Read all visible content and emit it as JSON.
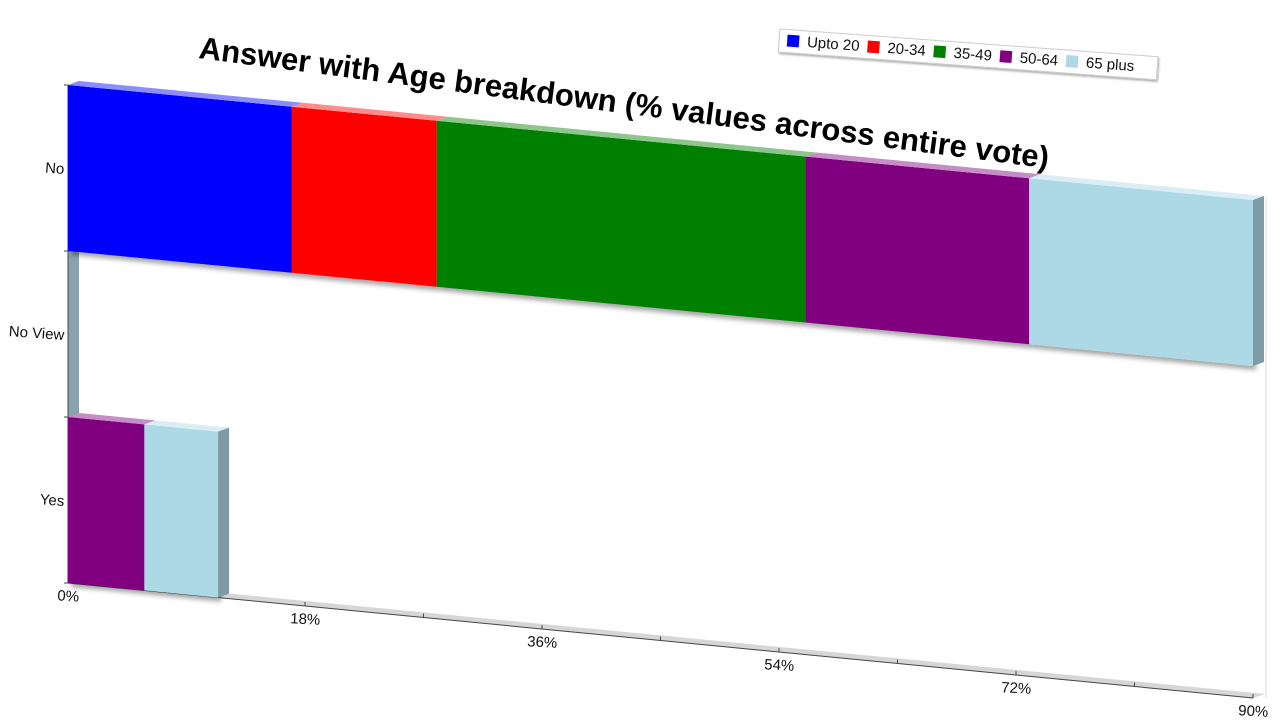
{
  "chart_data": {
    "type": "bar",
    "orientation": "horizontal",
    "stacked": true,
    "title": "Answer with Age breakdown (% values across entire vote)",
    "categories": [
      "No",
      "No View",
      "Yes"
    ],
    "series": [
      {
        "name": "Upto 20",
        "color": "#0000ff",
        "values": [
          17,
          0,
          0
        ]
      },
      {
        "name": "20-34",
        "color": "#ff0000",
        "values": [
          11,
          0,
          0
        ]
      },
      {
        "name": "35-49",
        "color": "#008000",
        "values": [
          28,
          0,
          0
        ]
      },
      {
        "name": "50-64",
        "color": "#800080",
        "values": [
          17,
          0,
          5.8
        ]
      },
      {
        "name": "65 plus",
        "color": "#add8e6",
        "values": [
          17,
          0,
          5.6
        ]
      }
    ],
    "x_ticks": [
      "0%",
      "18%",
      "36%",
      "54%",
      "72%",
      "90%"
    ],
    "x_tick_values": [
      0,
      18,
      36,
      54,
      72,
      90
    ],
    "xlim": [
      0,
      90
    ],
    "legend_position": "top-right",
    "grid": false
  }
}
